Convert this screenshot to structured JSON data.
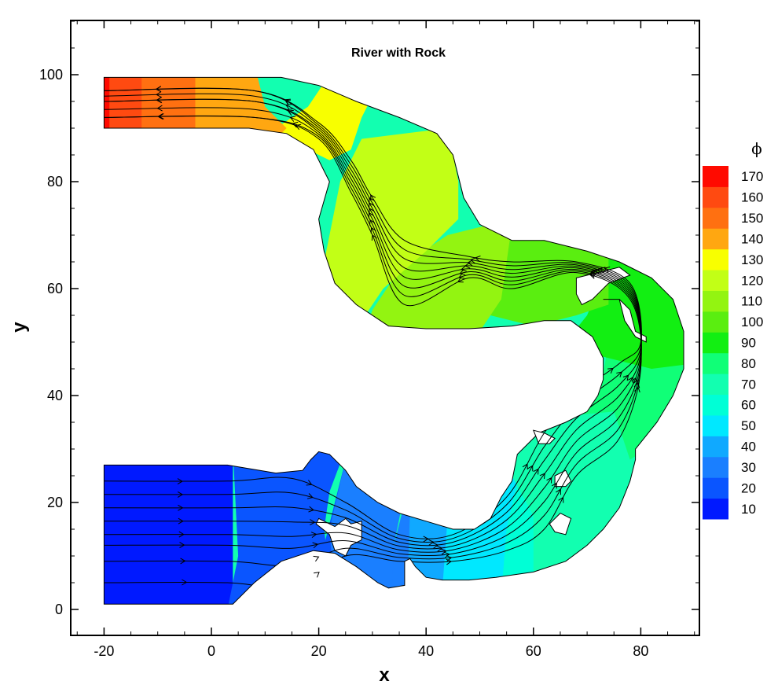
{
  "chart_data": {
    "type": "contour",
    "title": "River with Rock",
    "xlabel": "x",
    "ylabel": "y",
    "xlim": [
      -26,
      91
    ],
    "ylim": [
      -5,
      110
    ],
    "x_ticks": [
      -20,
      0,
      20,
      40,
      60,
      80
    ],
    "y_ticks": [
      0,
      20,
      40,
      60,
      80,
      100
    ],
    "x_tick_labels": [
      "-20",
      "0",
      "20",
      "40",
      "60",
      "80"
    ],
    "y_tick_labels": [
      "0",
      "20",
      "40",
      "60",
      "80",
      "100"
    ],
    "grid": false,
    "legend": {
      "title": "ϕ",
      "placement": "right",
      "levels": [
        10,
        20,
        30,
        40,
        50,
        60,
        70,
        80,
        90,
        100,
        110,
        120,
        130,
        140,
        150,
        160,
        170
      ],
      "level_labels": [
        "10",
        "20",
        "30",
        "40",
        "50",
        "60",
        "70",
        "80",
        "90",
        "100",
        "110",
        "120",
        "130",
        "140",
        "150",
        "160",
        "170"
      ],
      "colors": [
        "#0019ff",
        "#0a55ff",
        "#1a7fff",
        "#10a9ff",
        "#00e8ff",
        "#00ffd6",
        "#12ffb0",
        "#10ff77",
        "#12ef12",
        "#5aee10",
        "#93f411",
        "#c2ff16",
        "#f8ff00",
        "#ffa711",
        "#ff7011",
        "#ff4a11",
        "#ff0a00"
      ]
    },
    "series": [
      {
        "value_range": [
          10,
          175
        ],
        "description_inlet": "flow enters lower-left at phi ~10 and exits upper-left at phi ~175"
      }
    ]
  }
}
